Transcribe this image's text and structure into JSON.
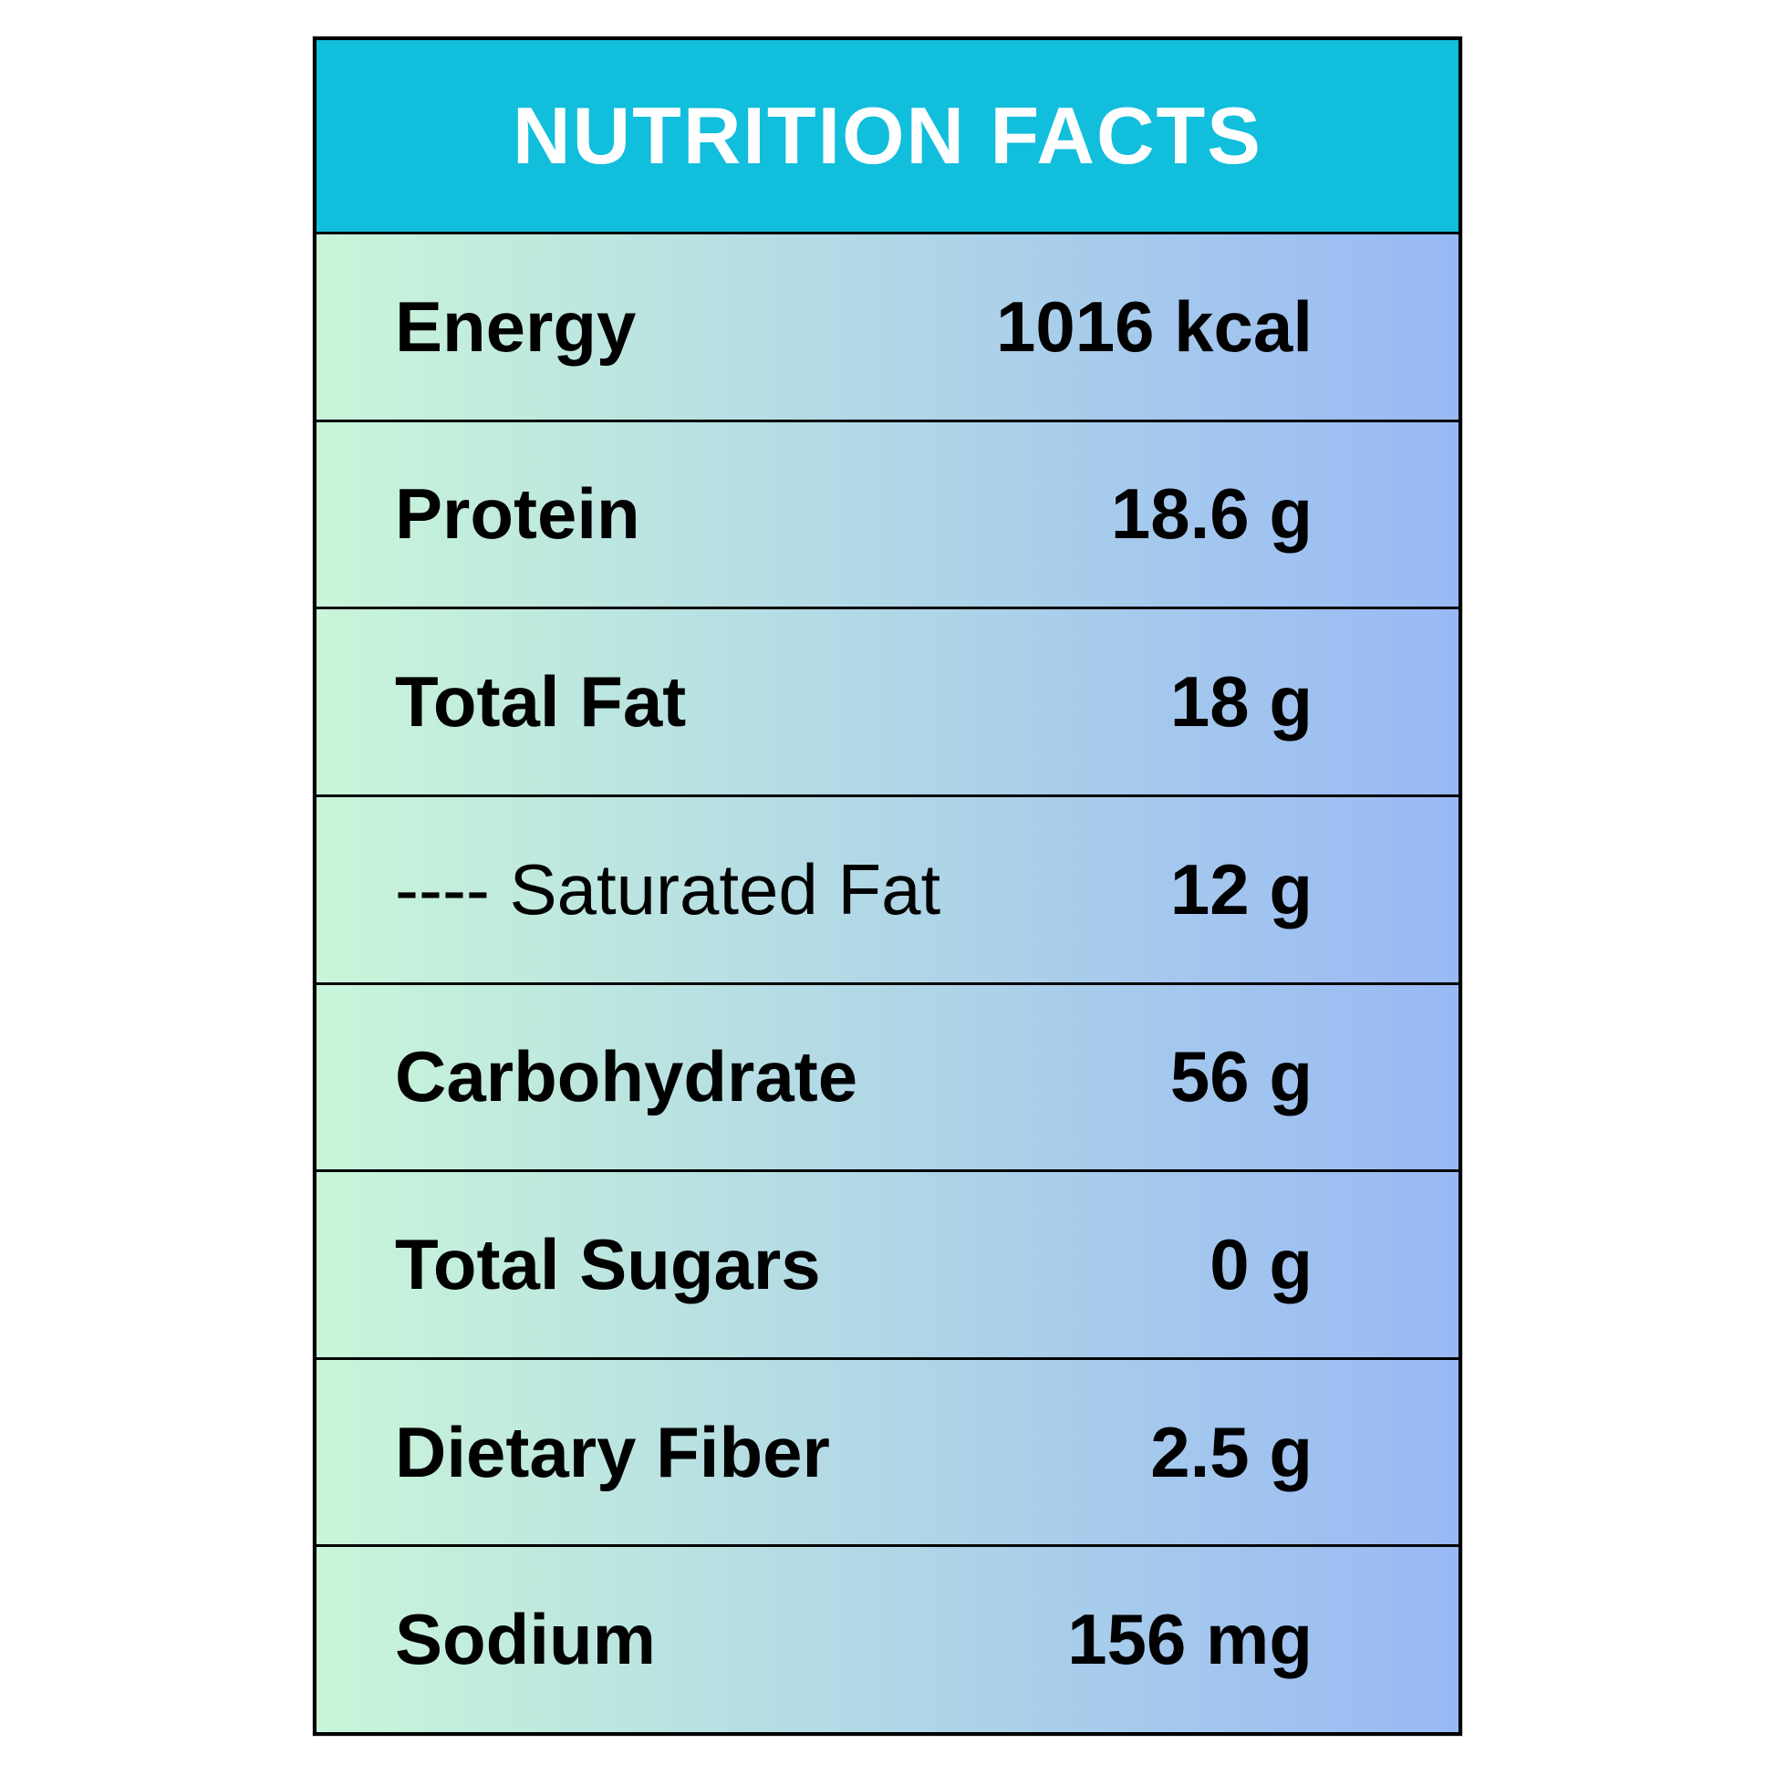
{
  "header": {
    "title": "NUTRITION FACTS"
  },
  "colors": {
    "header_bg": "#11BEDC",
    "header_text": "#FFFFFF",
    "gradient_left": "#C9F5D9",
    "gradient_right": "#98B9F4",
    "border": "#000000",
    "text": "#000000"
  },
  "rows": [
    {
      "label": "Energy",
      "value": "1016 kcal"
    },
    {
      "label": "Protein",
      "value": "18.6 g"
    },
    {
      "label": "Total Fat",
      "value": "18 g"
    },
    {
      "label": "---- Saturated Fat",
      "value": "12 g"
    },
    {
      "label": "Carbohydrate",
      "value": "56 g"
    },
    {
      "label": "Total Sugars",
      "value": "0 g"
    },
    {
      "label": "Dietary Fiber",
      "value": "2.5 g"
    },
    {
      "label": "Sodium",
      "value": "156 mg"
    }
  ]
}
